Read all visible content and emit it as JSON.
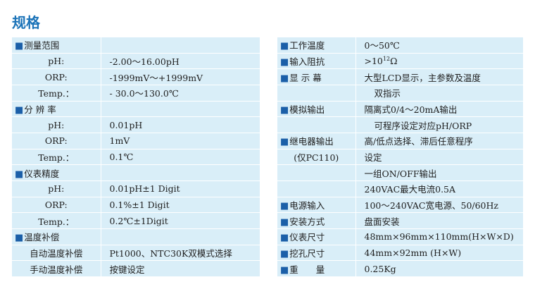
{
  "page_title": "规格",
  "square": "■",
  "left": [
    {
      "k": "测量范围",
      "v": "",
      "style": "sec"
    },
    {
      "k": "pH:",
      "v": "-2.00～16.00pH",
      "style": "sub"
    },
    {
      "k": "ORP:",
      "v": "-1999mV～+1999mV",
      "style": "sub"
    },
    {
      "k": "Temp.：",
      "v": "- 30.0～130.0℃",
      "style": "sub"
    },
    {
      "k": "分 辨 率",
      "v": "",
      "style": "sec"
    },
    {
      "k": "pH:",
      "v": "0.01pH",
      "style": "sub"
    },
    {
      "k": "ORP:",
      "v": "1mV",
      "style": "sub"
    },
    {
      "k": "Temp.：",
      "v": "0.1℃",
      "style": "sub"
    },
    {
      "k": "仪表精度",
      "v": "",
      "style": "sec"
    },
    {
      "k": "pH:",
      "v": "0.01pH±1 Digit",
      "style": "sub"
    },
    {
      "k": "ORP:",
      "v": "0.1%±1 Digit",
      "style": "sub"
    },
    {
      "k": "Temp.：",
      "v": "0.2℃±1Digit",
      "style": "sub"
    },
    {
      "k": "温度补偿",
      "v": "",
      "style": "sec"
    },
    {
      "k": "自动温度补偿",
      "v": "Pt1000、NTC30K双模式选择",
      "style": "plain"
    },
    {
      "k": "手动温度补偿",
      "v": "按键设定",
      "style": "plain"
    }
  ],
  "right": [
    {
      "k": "工作温度",
      "v": "0～50℃",
      "style": "sec"
    },
    {
      "k": "输入阻抗",
      "v": ">10",
      "sup": "12",
      "unit": "Ω",
      "style": "sec"
    },
    {
      "k": "显 示 幕",
      "v": "大型LCD显示，主参数及温度",
      "style": "sec"
    },
    {
      "k": "",
      "v": "双指示",
      "style": "cont"
    },
    {
      "k": "模拟输出",
      "v": "隔离式0/4～20mA输出",
      "style": "sec"
    },
    {
      "k": "",
      "v": "可程序设定对应pH/ORP",
      "style": "cont"
    },
    {
      "k": "继电器输出",
      "v": "高/低点选择、滞后任意程序",
      "style": "sec"
    },
    {
      "k": "(仅PC110)",
      "v": "设定",
      "style": "plain"
    },
    {
      "k": "",
      "v": "一组ON/OFF输出",
      "style": "none"
    },
    {
      "k": "",
      "v": "240VAC最大电流0.5A",
      "style": "none"
    },
    {
      "k": "电源输入",
      "v": "100～240VAC宽电源、50/60Hz",
      "style": "sec"
    },
    {
      "k": "安装方式",
      "v": "盘面安装",
      "style": "sec"
    },
    {
      "k": "仪表尺寸",
      "v": "48mm×96mm×110mm(H×W×D)",
      "style": "sec"
    },
    {
      "k": "挖孔尺寸",
      "v": "44mm×92mm (H×W)",
      "style": "sec"
    },
    {
      "k": "重　　量",
      "v": "0.25Kg",
      "style": "sec"
    }
  ]
}
